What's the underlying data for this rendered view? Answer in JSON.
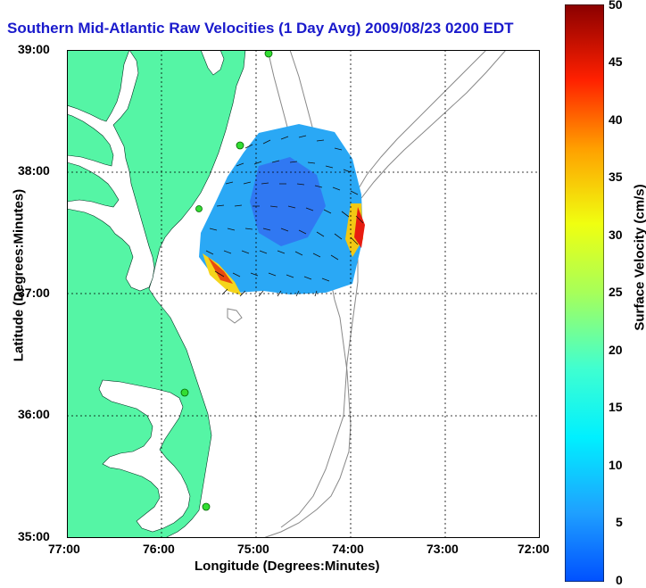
{
  "title": "Southern Mid-Atlantic Raw Velocities (1 Day Avg) 2009/08/23 0200 EDT",
  "map": {
    "xlabel": "Longitude (Degrees:Minutes)",
    "ylabel": "Latitude (Degrees:Minutes)",
    "x_ticks": [
      "77:00",
      "76:00",
      "75:00",
      "74:00",
      "73:00",
      "72:00"
    ],
    "y_ticks": [
      "39:00",
      "38:00",
      "37:00",
      "36:00",
      "35:00"
    ],
    "lon_range": [
      -77,
      -72
    ],
    "lat_range": [
      35,
      39
    ],
    "land_color": "#55f5a5",
    "water_color": "#ffffff",
    "grid": true,
    "station_color": "#33dd33"
  },
  "colorbar": {
    "label": "Surface Velocity (cm/s)",
    "ticks": [
      "50",
      "45",
      "40",
      "35",
      "30",
      "25",
      "20",
      "15",
      "10",
      "5",
      "0"
    ],
    "range": [
      0,
      50
    ],
    "colormap": "jet"
  }
}
